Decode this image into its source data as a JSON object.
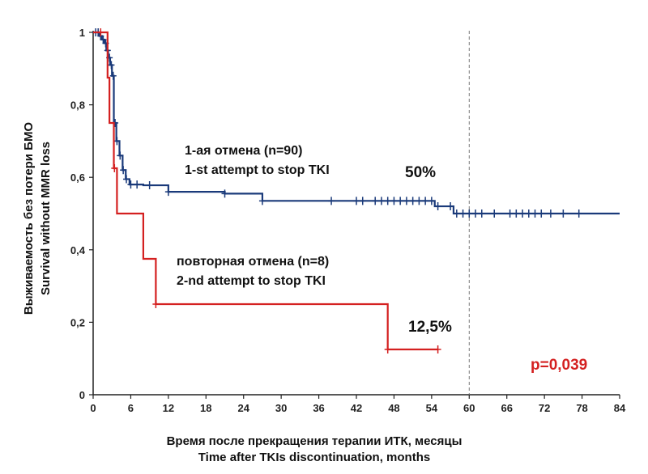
{
  "chart_data": {
    "type": "line",
    "subtype": "kaplan-meier step curves",
    "xlabel_ru": "Время после прекращения терапии ИТК, месяцы",
    "xlabel_en": "Time after TKIs discontinuation, months",
    "ylabel_ru": "Выживаемость без потери БМО",
    "ylabel_en": "Survival without MMR loss",
    "xlim": [
      0,
      84
    ],
    "ylim": [
      0,
      1
    ],
    "x_ticks": [
      0,
      6,
      12,
      18,
      24,
      30,
      36,
      42,
      48,
      54,
      60,
      66,
      72,
      78,
      84
    ],
    "x_tick_labels": [
      "0",
      "6",
      "12",
      "18",
      "24",
      "30",
      "36",
      "42",
      "48",
      "54",
      "60",
      "66",
      "72",
      "78",
      "84"
    ],
    "y_ticks": [
      0,
      0.2,
      0.4,
      0.6,
      0.8,
      1
    ],
    "y_tick_labels": [
      "0",
      "0,2",
      "0,4",
      "0,6",
      "0,8",
      "1"
    ],
    "reference_line_x": 60,
    "series": [
      {
        "color": "#1a3a7a",
        "steps": [
          [
            0,
            1.0
          ],
          [
            1.0,
            0.99
          ],
          [
            1.4,
            0.98
          ],
          [
            1.8,
            0.97
          ],
          [
            2.1,
            0.95
          ],
          [
            2.4,
            0.93
          ],
          [
            2.7,
            0.91
          ],
          [
            3.0,
            0.88
          ],
          [
            3.3,
            0.75
          ],
          [
            3.7,
            0.7
          ],
          [
            4.2,
            0.66
          ],
          [
            4.7,
            0.62
          ],
          [
            5.2,
            0.595
          ],
          [
            5.8,
            0.58
          ],
          [
            8,
            0.578
          ],
          [
            12,
            0.56
          ],
          [
            21,
            0.555
          ],
          [
            27,
            0.535
          ],
          [
            54.5,
            0.52
          ],
          [
            57.5,
            0.5
          ],
          [
            84,
            0.5
          ]
        ],
        "censor_x": [
          0.4,
          0.8,
          1.2,
          1.6,
          2.0,
          2.3,
          2.6,
          2.9,
          3.2,
          3.5,
          3.8,
          4.3,
          4.8,
          5.3,
          6,
          7,
          9,
          12,
          21,
          27,
          38,
          42,
          43,
          45,
          46,
          47,
          48,
          49,
          50,
          51,
          52,
          53,
          54,
          55,
          57,
          58,
          59,
          60,
          61,
          62,
          64,
          66.5,
          67.5,
          68.5,
          69.5,
          70.5,
          71.5,
          73,
          75,
          77.5
        ]
      },
      {
        "color": "#d42020",
        "steps": [
          [
            0,
            1.0
          ],
          [
            2.3,
            0.875
          ],
          [
            2.6,
            0.75
          ],
          [
            3.3,
            0.625
          ],
          [
            3.8,
            0.5
          ],
          [
            8.0,
            0.375
          ],
          [
            10.0,
            0.25
          ],
          [
            47.0,
            0.125
          ],
          [
            55,
            0.125
          ]
        ],
        "censor_x": [
          1.2,
          3.4,
          10.0,
          47.0,
          55
        ]
      }
    ],
    "annotations": {
      "group1_line1": "1-ая отмена (n=90)",
      "group1_line2": "1-st attempt to stop TKI",
      "group1_value": "50%",
      "group2_line1": "повторная отмена (n=8)",
      "group2_line2": "2-nd attempt to stop TKI",
      "group2_value": "12,5%",
      "pvalue": "p=0,039"
    },
    "grid": false
  }
}
